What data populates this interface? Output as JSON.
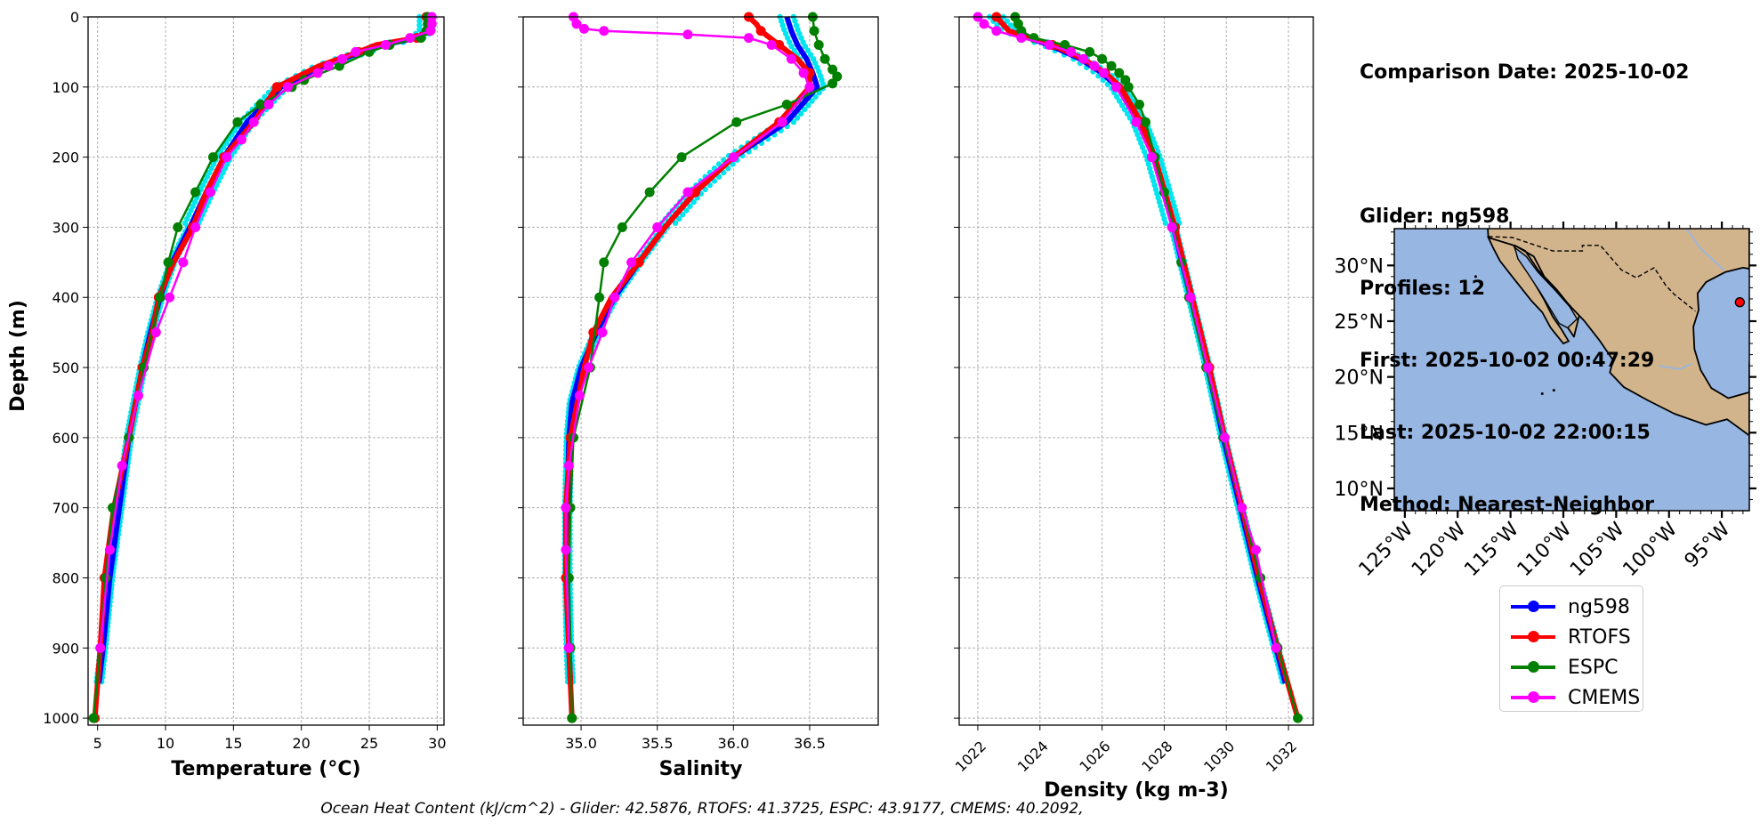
{
  "info": {
    "comparison_date": "Comparison Date: 2025-10-02",
    "glider": "Glider: ng598",
    "profiles": "Profiles: 12",
    "first": "First: 2025-10-02 00:47:29",
    "last": "Last: 2025-10-02 22:00:15",
    "method": "Method: Nearest-Neighbor"
  },
  "footer": "Ocean Heat Content (kJ/cm^2) - Glider: 42.5876,  RTOFS: 41.3725,  ESPC: 43.9177,  CMEMS: 40.2092,",
  "colors": {
    "ng598": "#0000ff",
    "RTOFS": "#ff0000",
    "ESPC": "#008000",
    "CMEMS": "#ff00ff",
    "raw": "#00e5ee",
    "land": "#d2b48c",
    "ocean": "#97b6e1"
  },
  "legend": [
    {
      "name": "ng598",
      "color": "#0000ff"
    },
    {
      "name": "RTOFS",
      "color": "#ff0000"
    },
    {
      "name": "ESPC",
      "color": "#008000"
    },
    {
      "name": "CMEMS",
      "color": "#ff00ff"
    }
  ],
  "map": {
    "lat_labels": [
      "30°N",
      "25°N",
      "20°N",
      "15°N",
      "10°N"
    ],
    "lon_labels": [
      "125°W",
      "120°W",
      "115°W",
      "110°W",
      "105°W",
      "100°W",
      "95°W"
    ],
    "lon_range": [
      -126,
      -92.4
    ],
    "lat_range": [
      8,
      33.3
    ],
    "glider_position": {
      "lon": -93.3,
      "lat": 26.7
    }
  },
  "chart_data": [
    {
      "type": "line",
      "title": "",
      "xlabel": "Temperature (°C)",
      "ylabel": "Depth (m)",
      "xlim": [
        4.3,
        30.5
      ],
      "ylim": [
        1010,
        0
      ],
      "xticks": [
        "5",
        "10",
        "15",
        "20",
        "25",
        "30"
      ],
      "yticks": [
        "0",
        "100",
        "200",
        "300",
        "400",
        "500",
        "600",
        "700",
        "800",
        "900",
        "1000"
      ],
      "grid": true,
      "series": [
        {
          "name": "ng598",
          "depth": [
            0,
            20,
            30,
            40,
            50,
            70,
            100,
            150,
            200,
            250,
            300,
            350,
            400,
            450,
            500,
            550,
            600,
            700,
            800,
            900,
            950
          ],
          "values": [
            29.2,
            29.2,
            28.5,
            26.0,
            24.5,
            21.5,
            18.5,
            16.0,
            14.3,
            13.0,
            11.8,
            10.5,
            9.6,
            8.9,
            8.3,
            7.8,
            7.3,
            6.6,
            5.9,
            5.4,
            5.1
          ]
        },
        {
          "name": "RTOFS",
          "depth": [
            0,
            20,
            30,
            40,
            50,
            70,
            100,
            150,
            200,
            250,
            300,
            350,
            400,
            450,
            500,
            550,
            600,
            700,
            800,
            900,
            1000
          ],
          "values": [
            29.2,
            29.2,
            28.5,
            25.5,
            24.2,
            21.3,
            18.2,
            16.5,
            14.3,
            13.0,
            12.0,
            10.6,
            9.5,
            9.0,
            8.3,
            7.8,
            7.3,
            6.2,
            5.5,
            5.2,
            4.8
          ]
        },
        {
          "name": "ESPC",
          "depth": [
            0,
            10,
            20,
            30,
            40,
            50,
            70,
            90,
            100,
            125,
            150,
            200,
            250,
            300,
            350,
            400,
            500,
            600,
            700,
            800,
            900,
            1000
          ],
          "values": [
            29.3,
            29.3,
            29.2,
            28.8,
            26.5,
            25.0,
            22.8,
            20.2,
            19.3,
            17.0,
            15.3,
            13.5,
            12.2,
            10.9,
            10.2,
            9.6,
            8.4,
            7.3,
            6.1,
            5.6,
            5.2,
            4.7
          ]
        },
        {
          "name": "CMEMS",
          "depth": [
            0,
            10,
            20,
            30,
            40,
            50,
            60,
            70,
            80,
            100,
            125,
            150,
            175,
            200,
            250,
            300,
            350,
            400,
            450,
            540,
            640,
            760,
            900
          ],
          "values": [
            29.6,
            29.6,
            29.5,
            28.0,
            26.2,
            24.0,
            23.0,
            22.0,
            21.2,
            19.0,
            17.6,
            16.5,
            15.6,
            14.5,
            13.3,
            12.2,
            11.3,
            10.3,
            9.3,
            8.0,
            6.8,
            5.9,
            5.2
          ]
        }
      ]
    },
    {
      "type": "line",
      "title": "",
      "xlabel": "Salinity",
      "ylabel": "",
      "xlim": [
        34.62,
        36.95
      ],
      "ylim": [
        1010,
        0
      ],
      "xticks": [
        "35.0",
        "35.5",
        "36.0",
        "36.5"
      ],
      "grid": true,
      "series": [
        {
          "name": "ng598",
          "depth": [
            0,
            20,
            40,
            60,
            80,
            100,
            150,
            200,
            250,
            300,
            350,
            400,
            450,
            500,
            550,
            600,
            700,
            800,
            900,
            950
          ],
          "values": [
            36.35,
            36.38,
            36.42,
            36.48,
            36.52,
            36.55,
            36.35,
            36.0,
            35.75,
            35.55,
            35.38,
            35.22,
            35.1,
            35.0,
            34.94,
            34.92,
            34.91,
            34.91,
            34.92,
            34.93
          ]
        },
        {
          "name": "RTOFS",
          "depth": [
            0,
            10,
            20,
            30,
            40,
            60,
            80,
            100,
            150,
            200,
            250,
            300,
            350,
            400,
            450,
            500,
            600,
            700,
            800,
            900,
            1000
          ],
          "values": [
            36.1,
            36.15,
            36.18,
            36.24,
            36.3,
            36.42,
            36.5,
            36.5,
            36.3,
            36.0,
            35.75,
            35.55,
            35.38,
            35.2,
            35.08,
            35.02,
            34.93,
            34.9,
            34.9,
            34.92,
            34.94
          ]
        },
        {
          "name": "ESPC",
          "depth": [
            0,
            20,
            40,
            60,
            75,
            85,
            95,
            125,
            150,
            200,
            250,
            300,
            350,
            400,
            500,
            600,
            700,
            800,
            900,
            1000
          ],
          "values": [
            36.52,
            36.53,
            36.56,
            36.6,
            36.65,
            36.68,
            36.65,
            36.35,
            36.02,
            35.66,
            35.45,
            35.27,
            35.15,
            35.12,
            35.06,
            34.95,
            34.93,
            34.92,
            34.93,
            34.94
          ]
        },
        {
          "name": "CMEMS",
          "depth": [
            0,
            10,
            17,
            20,
            25,
            30,
            40,
            60,
            80,
            100,
            150,
            200,
            250,
            300,
            350,
            400,
            450,
            500,
            540,
            640,
            700,
            760,
            900
          ],
          "values": [
            34.95,
            34.97,
            35.02,
            35.15,
            35.7,
            36.1,
            36.25,
            36.38,
            36.46,
            36.5,
            36.32,
            36.0,
            35.7,
            35.5,
            35.33,
            35.22,
            35.14,
            35.05,
            34.99,
            34.92,
            34.9,
            34.9,
            34.92
          ]
        }
      ]
    },
    {
      "type": "line",
      "title": "",
      "xlabel": "Density (kg m-3)",
      "ylabel": "",
      "xlim": [
        1021.4,
        1032.8
      ],
      "ylim": [
        1010,
        0
      ],
      "xticks": [
        "1022",
        "1024",
        "1026",
        "1028",
        "1030",
        "1032"
      ],
      "grid": true,
      "series": [
        {
          "name": "ng598",
          "depth": [
            0,
            20,
            40,
            60,
            80,
            100,
            150,
            200,
            300,
            400,
            500,
            600,
            700,
            800,
            900,
            950
          ],
          "values": [
            1022.6,
            1023.0,
            1024.3,
            1025.3,
            1026.0,
            1026.5,
            1027.2,
            1027.65,
            1028.3,
            1028.85,
            1029.4,
            1029.9,
            1030.45,
            1031.0,
            1031.6,
            1031.9
          ]
        },
        {
          "name": "RTOFS",
          "depth": [
            0,
            20,
            40,
            60,
            80,
            100,
            150,
            200,
            300,
            400,
            500,
            600,
            700,
            800,
            900,
            1000
          ],
          "values": [
            1022.6,
            1023.0,
            1024.4,
            1025.4,
            1026.1,
            1026.6,
            1027.25,
            1027.7,
            1028.35,
            1028.9,
            1029.45,
            1029.95,
            1030.5,
            1031.05,
            1031.65,
            1032.3
          ]
        },
        {
          "name": "ESPC",
          "depth": [
            0,
            10,
            20,
            30,
            40,
            50,
            60,
            70,
            80,
            90,
            100,
            125,
            150,
            200,
            250,
            300,
            350,
            400,
            500,
            600,
            700,
            800,
            900,
            1000
          ],
          "values": [
            1023.2,
            1023.3,
            1023.4,
            1023.8,
            1024.8,
            1025.6,
            1026.0,
            1026.3,
            1026.55,
            1026.75,
            1026.85,
            1027.2,
            1027.4,
            1027.7,
            1028.0,
            1028.3,
            1028.55,
            1028.8,
            1029.35,
            1029.9,
            1030.5,
            1031.1,
            1031.65,
            1032.3
          ]
        },
        {
          "name": "CMEMS",
          "depth": [
            0,
            10,
            20,
            30,
            40,
            50,
            60,
            70,
            80,
            100,
            150,
            200,
            300,
            400,
            500,
            600,
            700,
            760,
            900
          ],
          "values": [
            1022.0,
            1022.2,
            1022.6,
            1023.4,
            1024.3,
            1025.0,
            1025.4,
            1025.75,
            1026.05,
            1026.45,
            1027.1,
            1027.6,
            1028.25,
            1028.85,
            1029.4,
            1029.95,
            1030.5,
            1030.95,
            1031.6
          ]
        }
      ]
    }
  ]
}
